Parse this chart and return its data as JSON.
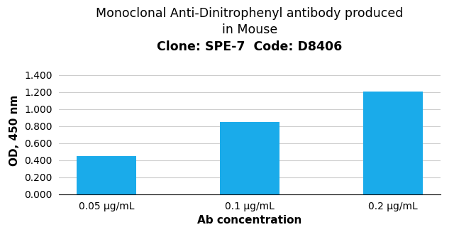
{
  "title_line1": "Monoclonal Anti-Dinitrophenyl antibody produced",
  "title_line2": "in Mouse",
  "title_line3": "Clone: SPE-7  Code: D8406",
  "categories": [
    "0.05 μg/mL",
    "0.1 μg/mL",
    "0.2 μg/mL"
  ],
  "values": [
    0.45,
    0.845,
    1.205
  ],
  "bar_color": "#1aabea",
  "xlabel": "Ab concentration",
  "ylabel": "OD, 450 nm",
  "ylim": [
    0,
    1.5
  ],
  "yticks": [
    0.0,
    0.2,
    0.4,
    0.6,
    0.8,
    1.0,
    1.2,
    1.4
  ],
  "background_color": "#ffffff",
  "title_fontsize": 12.5,
  "axis_label_fontsize": 11,
  "tick_fontsize": 10,
  "bar_width": 0.42
}
